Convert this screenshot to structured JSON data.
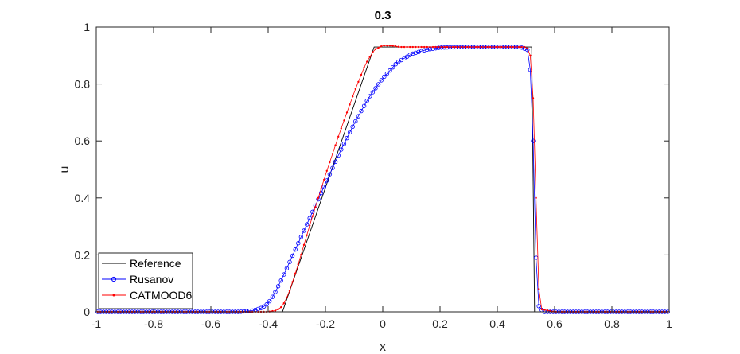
{
  "chart_data": {
    "type": "line",
    "title": "0.3",
    "xlabel": "x",
    "ylabel": "u",
    "xlim": [
      -1,
      1
    ],
    "ylim": [
      0,
      1
    ],
    "xticks": [
      -1,
      -0.8,
      -0.6,
      -0.4,
      -0.2,
      0,
      0.2,
      0.4,
      0.6,
      0.8,
      1
    ],
    "xtick_labels": [
      "-1",
      "-0.8",
      "-0.6",
      "-0.4",
      "-0.2",
      "0",
      "0.2",
      "0.4",
      "0.6",
      "0.8",
      "1"
    ],
    "yticks": [
      0,
      0.2,
      0.4,
      0.6,
      0.8,
      1
    ],
    "ytick_labels": [
      "0",
      "0.2",
      "0.4",
      "0.6",
      "0.8",
      "1"
    ],
    "grid": false,
    "legend_position": "bottom-left",
    "series": [
      {
        "name": "Reference",
        "color": "#000000",
        "marker": "none",
        "x": [
          -1,
          -0.35,
          -0.03,
          0.52,
          0.52,
          0.53,
          1
        ],
        "y": [
          0,
          0,
          0.93,
          0.93,
          0.93,
          0,
          0
        ]
      },
      {
        "name": "Rusanov",
        "color": "#0000ff",
        "marker": "circle",
        "x": [
          -1,
          -0.5,
          -0.45,
          -0.42,
          -0.4,
          -0.38,
          -0.35,
          -0.3,
          -0.25,
          -0.2,
          -0.15,
          -0.1,
          -0.05,
          0,
          0.05,
          0.1,
          0.15,
          0.2,
          0.3,
          0.4,
          0.48,
          0.505,
          0.515,
          0.525,
          0.535,
          0.545,
          0.56,
          0.6,
          1
        ],
        "y": [
          0,
          0,
          0.005,
          0.015,
          0.03,
          0.06,
          0.12,
          0.23,
          0.34,
          0.45,
          0.56,
          0.66,
          0.75,
          0.82,
          0.875,
          0.905,
          0.92,
          0.928,
          0.93,
          0.93,
          0.93,
          0.92,
          0.85,
          0.6,
          0.19,
          0.02,
          0,
          0,
          0
        ]
      },
      {
        "name": "CATMOOD6",
        "color": "#ff0000",
        "marker": "dot",
        "x": [
          -1,
          -0.4,
          -0.37,
          -0.35,
          -0.33,
          -0.3,
          -0.25,
          -0.2,
          -0.15,
          -0.1,
          -0.06,
          -0.03,
          0,
          0.03,
          0.06,
          0.1,
          0.2,
          0.3,
          0.4,
          0.5,
          0.51,
          0.52,
          0.525,
          0.535,
          0.545,
          0.55,
          0.6,
          1
        ],
        "y": [
          0,
          0,
          0.005,
          0.02,
          0.06,
          0.15,
          0.32,
          0.48,
          0.63,
          0.77,
          0.87,
          0.92,
          0.935,
          0.935,
          0.93,
          0.93,
          0.93,
          0.93,
          0.93,
          0.93,
          0.92,
          0.88,
          0.75,
          0.4,
          0.08,
          0.01,
          0,
          0
        ]
      }
    ]
  }
}
